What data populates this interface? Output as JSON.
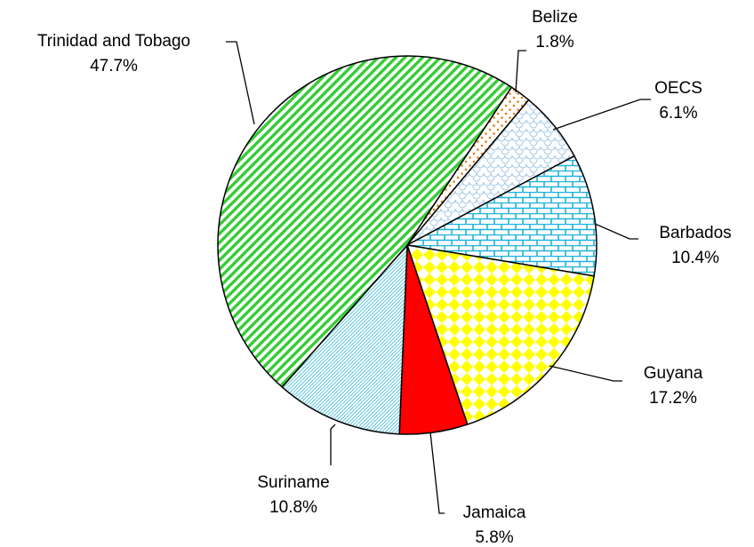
{
  "chart_data": {
    "type": "pie",
    "categories": [
      "Belize",
      "OECS",
      "Barbados",
      "Guyana",
      "Jamaica",
      "Suriname",
      "Trinidad and Tobago"
    ],
    "values": [
      1.8,
      6.1,
      10.4,
      17.2,
      5.8,
      10.8,
      47.7
    ],
    "value_labels": [
      "1.8%",
      "6.1%",
      "10.4%",
      "17.2%",
      "5.8%",
      "10.8%",
      "47.7%"
    ],
    "colors": [
      "#e07a10",
      "#9cc3e6",
      "#1fb3d9",
      "#ffff00",
      "#ff0000",
      "#5fc6dc",
      "#33cc33"
    ],
    "patterns": [
      "dots",
      "scallop",
      "brick",
      "diamond",
      "solid",
      "fine-diagonal",
      "diagonal"
    ]
  }
}
